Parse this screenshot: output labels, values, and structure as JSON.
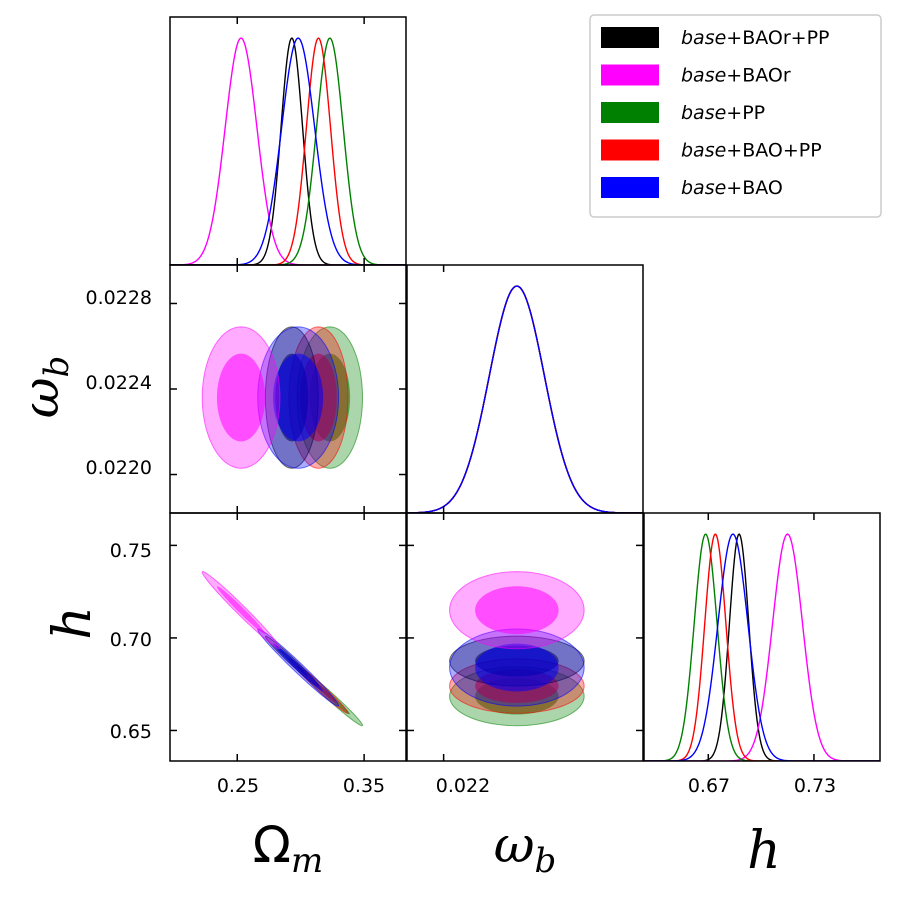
{
  "chart_data": {
    "type": "triangle-corner-plot",
    "parameters": [
      {
        "key": "om",
        "label": "Ω",
        "label_sub": "m",
        "ticks": [
          0.25,
          0.35
        ],
        "tick_labels": [
          "0.25",
          "0.35"
        ],
        "range": [
          0.197,
          0.383
        ]
      },
      {
        "key": "wb",
        "label": "ω",
        "label_sub": "b",
        "ticks": [
          0.022,
          0.0224,
          0.0228
        ],
        "tick_labels": [
          "0.0220",
          "0.0224",
          "0.0228"
        ],
        "x_tick_labels": [
          "0.022"
        ],
        "range": [
          0.02182,
          0.02298
        ]
      },
      {
        "key": "h",
        "label": "h",
        "label_sub": "",
        "ticks": [
          0.65,
          0.7,
          0.75
        ],
        "tick_labels": [
          "0.65",
          "0.70",
          "0.75"
        ],
        "x_ticks": [
          0.67,
          0.73
        ],
        "x_tick_labels": [
          "0.67",
          "0.73"
        ],
        "range": [
          0.6335,
          0.7675
        ]
      }
    ],
    "series": [
      {
        "name_italic": "base",
        "name_rest": "+BAOr+PP",
        "color": "#000000",
        "mean": {
          "om": 0.293,
          "wb": 0.02236,
          "h": 0.6875
        },
        "sigma": {
          "om": 0.0085,
          "wb": 0.000135,
          "h": 0.0055
        },
        "corr_om_h": -0.985
      },
      {
        "name_italic": "base",
        "name_rest": "+BAOr",
        "color": "#ff00ff",
        "mean": {
          "om": 0.253,
          "wb": 0.02236,
          "h": 0.715
        },
        "sigma": {
          "om": 0.0125,
          "wb": 0.000135,
          "h": 0.0085
        },
        "corr_om_h": -0.985
      },
      {
        "name_italic": "base",
        "name_rest": "+PP",
        "color": "#008000",
        "mean": {
          "om": 0.323,
          "wb": 0.02236,
          "h": 0.6685
        },
        "sigma": {
          "om": 0.0105,
          "wb": 0.000135,
          "h": 0.0065
        },
        "corr_om_h": -0.985
      },
      {
        "name_italic": "base",
        "name_rest": "+BAO+PP",
        "color": "#ff0000",
        "mean": {
          "om": 0.314,
          "wb": 0.02236,
          "h": 0.674
        },
        "sigma": {
          "om": 0.0095,
          "wb": 0.000135,
          "h": 0.006
        },
        "corr_om_h": -0.985
      },
      {
        "name_italic": "base",
        "name_rest": "+BAO",
        "color": "#0000ff",
        "mean": {
          "om": 0.298,
          "wb": 0.02236,
          "h": 0.684
        },
        "sigma": {
          "om": 0.013,
          "wb": 0.000135,
          "h": 0.0085
        },
        "corr_om_h": -0.985
      }
    ],
    "legend_position": "top-right",
    "grid": false
  }
}
